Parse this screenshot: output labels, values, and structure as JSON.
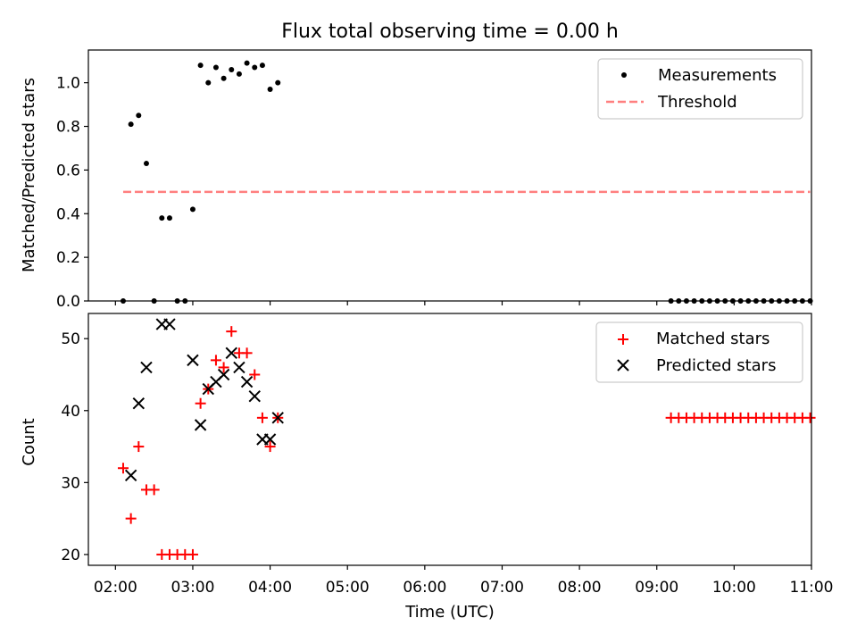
{
  "chart_data": [
    {
      "type": "scatter",
      "title": "Flux total observing time = 0.00 h",
      "xlabel": "",
      "ylabel": "Matched/Predicted stars",
      "xlim": [
        "01:39",
        "11:00"
      ],
      "ylim": [
        0,
        1.15
      ],
      "yticks": [
        "0.0",
        "0.2",
        "0.4",
        "0.6",
        "0.8",
        "1.0"
      ],
      "legend_position": "upper right",
      "legend": [
        "Measurements",
        "Threshold"
      ],
      "series": [
        {
          "name": "Measurements",
          "marker": "dot",
          "color": "#000000",
          "points": [
            [
              "02:06",
              0.0
            ],
            [
              "02:12",
              0.81
            ],
            [
              "02:18",
              0.85
            ],
            [
              "02:24",
              0.63
            ],
            [
              "02:30",
              0.0
            ],
            [
              "02:36",
              0.38
            ],
            [
              "02:42",
              0.38
            ],
            [
              "02:48",
              0.0
            ],
            [
              "02:54",
              0.0
            ],
            [
              "03:00",
              0.42
            ],
            [
              "03:06",
              1.08
            ],
            [
              "03:12",
              1.0
            ],
            [
              "03:18",
              1.07
            ],
            [
              "03:24",
              1.02
            ],
            [
              "03:30",
              1.06
            ],
            [
              "03:36",
              1.04
            ],
            [
              "03:42",
              1.09
            ],
            [
              "03:48",
              1.07
            ],
            [
              "03:54",
              1.08
            ],
            [
              "04:00",
              0.97
            ],
            [
              "04:06",
              1.0
            ],
            [
              "09:11",
              0.0
            ],
            [
              "09:17",
              0.0
            ],
            [
              "09:23",
              0.0
            ],
            [
              "09:29",
              0.0
            ],
            [
              "09:35",
              0.0
            ],
            [
              "09:41",
              0.0
            ],
            [
              "09:47",
              0.0
            ],
            [
              "09:53",
              0.0
            ],
            [
              "09:59",
              0.0
            ],
            [
              "10:05",
              0.0
            ],
            [
              "10:11",
              0.0
            ],
            [
              "10:17",
              0.0
            ],
            [
              "10:23",
              0.0
            ],
            [
              "10:29",
              0.0
            ],
            [
              "10:35",
              0.0
            ],
            [
              "10:41",
              0.0
            ],
            [
              "10:47",
              0.0
            ],
            [
              "10:53",
              0.0
            ],
            [
              "10:59",
              0.0
            ]
          ]
        },
        {
          "name": "Threshold",
          "marker": "dashed-line",
          "color": "#ff7f7f",
          "points": [
            [
              "02:06",
              0.5
            ],
            [
              "10:59",
              0.5
            ]
          ]
        }
      ]
    },
    {
      "type": "scatter",
      "title": "",
      "xlabel": "Time (UTC)",
      "ylabel": "Count",
      "xlim": [
        "01:39",
        "11:00"
      ],
      "ylim": [
        18.5,
        53.5
      ],
      "xticks": [
        "02:00",
        "03:00",
        "04:00",
        "05:00",
        "06:00",
        "07:00",
        "08:00",
        "09:00",
        "10:00",
        "11:00"
      ],
      "yticks": [
        "20",
        "30",
        "40",
        "50"
      ],
      "legend_position": "upper right",
      "legend": [
        "Matched stars",
        "Predicted stars"
      ],
      "series": [
        {
          "name": "Matched stars",
          "marker": "plus",
          "color": "#ff0000",
          "points": [
            [
              "02:06",
              32
            ],
            [
              "02:12",
              25
            ],
            [
              "02:18",
              35
            ],
            [
              "02:24",
              29
            ],
            [
              "02:30",
              29
            ],
            [
              "02:36",
              20
            ],
            [
              "02:42",
              20
            ],
            [
              "02:48",
              20
            ],
            [
              "02:54",
              20
            ],
            [
              "03:00",
              20
            ],
            [
              "03:06",
              41
            ],
            [
              "03:12",
              43
            ],
            [
              "03:18",
              47
            ],
            [
              "03:24",
              46
            ],
            [
              "03:30",
              51
            ],
            [
              "03:36",
              48
            ],
            [
              "03:42",
              48
            ],
            [
              "03:48",
              45
            ],
            [
              "03:54",
              39
            ],
            [
              "04:00",
              35
            ],
            [
              "04:06",
              39
            ],
            [
              "09:11",
              39
            ],
            [
              "09:17",
              39
            ],
            [
              "09:23",
              39
            ],
            [
              "09:29",
              39
            ],
            [
              "09:35",
              39
            ],
            [
              "09:41",
              39
            ],
            [
              "09:47",
              39
            ],
            [
              "09:53",
              39
            ],
            [
              "09:59",
              39
            ],
            [
              "10:05",
              39
            ],
            [
              "10:11",
              39
            ],
            [
              "10:17",
              39
            ],
            [
              "10:23",
              39
            ],
            [
              "10:29",
              39
            ],
            [
              "10:35",
              39
            ],
            [
              "10:41",
              39
            ],
            [
              "10:47",
              39
            ],
            [
              "10:53",
              39
            ],
            [
              "10:59",
              39
            ]
          ]
        },
        {
          "name": "Predicted stars",
          "marker": "x",
          "color": "#000000",
          "points": [
            [
              "02:12",
              31
            ],
            [
              "02:18",
              41
            ],
            [
              "02:24",
              46
            ],
            [
              "02:36",
              52
            ],
            [
              "02:42",
              52
            ],
            [
              "03:00",
              47
            ],
            [
              "03:06",
              38
            ],
            [
              "03:12",
              43
            ],
            [
              "03:18",
              44
            ],
            [
              "03:24",
              45
            ],
            [
              "03:30",
              48
            ],
            [
              "03:36",
              46
            ],
            [
              "03:42",
              44
            ],
            [
              "03:48",
              42
            ],
            [
              "03:54",
              36
            ],
            [
              "04:00",
              36
            ],
            [
              "04:06",
              39
            ]
          ]
        }
      ]
    }
  ]
}
